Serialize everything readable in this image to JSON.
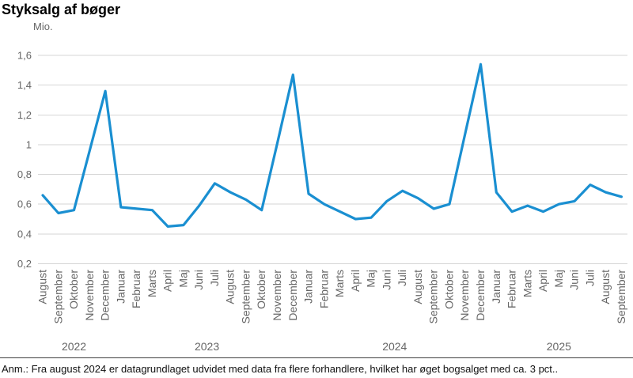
{
  "page": {
    "title": "Styksalg af bøger",
    "unit_label": "Mio.",
    "footnote": "Anm.: Fra august 2024 er datagrundlaget udvidet med data fra flere forhandlere, hvilket har øget bogsalget med ca. 3 pct.."
  },
  "colors": {
    "line": "#1a8fd1",
    "grid": "#d6d6d6",
    "axis_text": "#666666",
    "title_text": "#000000",
    "footnote_text": "#111111",
    "divider": "#404040"
  },
  "chart_data": {
    "type": "line",
    "title": "Styksalg af bøger",
    "ylabel": "Mio.",
    "xlabel": "",
    "ylim": [
      0.2,
      1.6
    ],
    "grid": true,
    "legend_position": "none",
    "yticks": [
      {
        "value": 1.6,
        "label": "1,6"
      },
      {
        "value": 1.4,
        "label": "1,4"
      },
      {
        "value": 1.2,
        "label": "1,2"
      },
      {
        "value": 1.0,
        "label": "1"
      },
      {
        "value": 0.8,
        "label": "0,8"
      },
      {
        "value": 0.6,
        "label": "0,6"
      },
      {
        "value": 0.4,
        "label": "0,4"
      },
      {
        "value": 0.2,
        "label": "0,2"
      }
    ],
    "categories": [
      "August",
      "September",
      "Oktober",
      "November",
      "December",
      "Januar",
      "Februar",
      "Marts",
      "April",
      "Maj",
      "Juni",
      "Juli",
      "August",
      "September",
      "Oktober",
      "November",
      "December",
      "Januar",
      "Februar",
      "Marts",
      "April",
      "Maj",
      "Juni",
      "Juli",
      "August",
      "September",
      "Oktober",
      "November",
      "December",
      "Januar",
      "Februar",
      "Marts",
      "April",
      "Maj",
      "Juni",
      "Juli",
      "August",
      "September"
    ],
    "year_groups": [
      {
        "label": "2022",
        "from": 0,
        "to": 4
      },
      {
        "label": "2023",
        "from": 5,
        "to": 16
      },
      {
        "label": "2024",
        "from": 17,
        "to": 28
      },
      {
        "label": "2025",
        "from": 29,
        "to": 37
      }
    ],
    "values": [
      0.66,
      0.54,
      0.56,
      0.96,
      1.36,
      0.58,
      0.57,
      0.56,
      0.45,
      0.46,
      0.59,
      0.74,
      0.68,
      0.63,
      0.56,
      1.01,
      1.47,
      0.67,
      0.6,
      0.55,
      0.5,
      0.51,
      0.62,
      0.69,
      0.64,
      0.57,
      0.6,
      1.07,
      1.54,
      0.68,
      0.55,
      0.59,
      0.55,
      0.6,
      0.62,
      0.73,
      0.68,
      0.65
    ]
  }
}
